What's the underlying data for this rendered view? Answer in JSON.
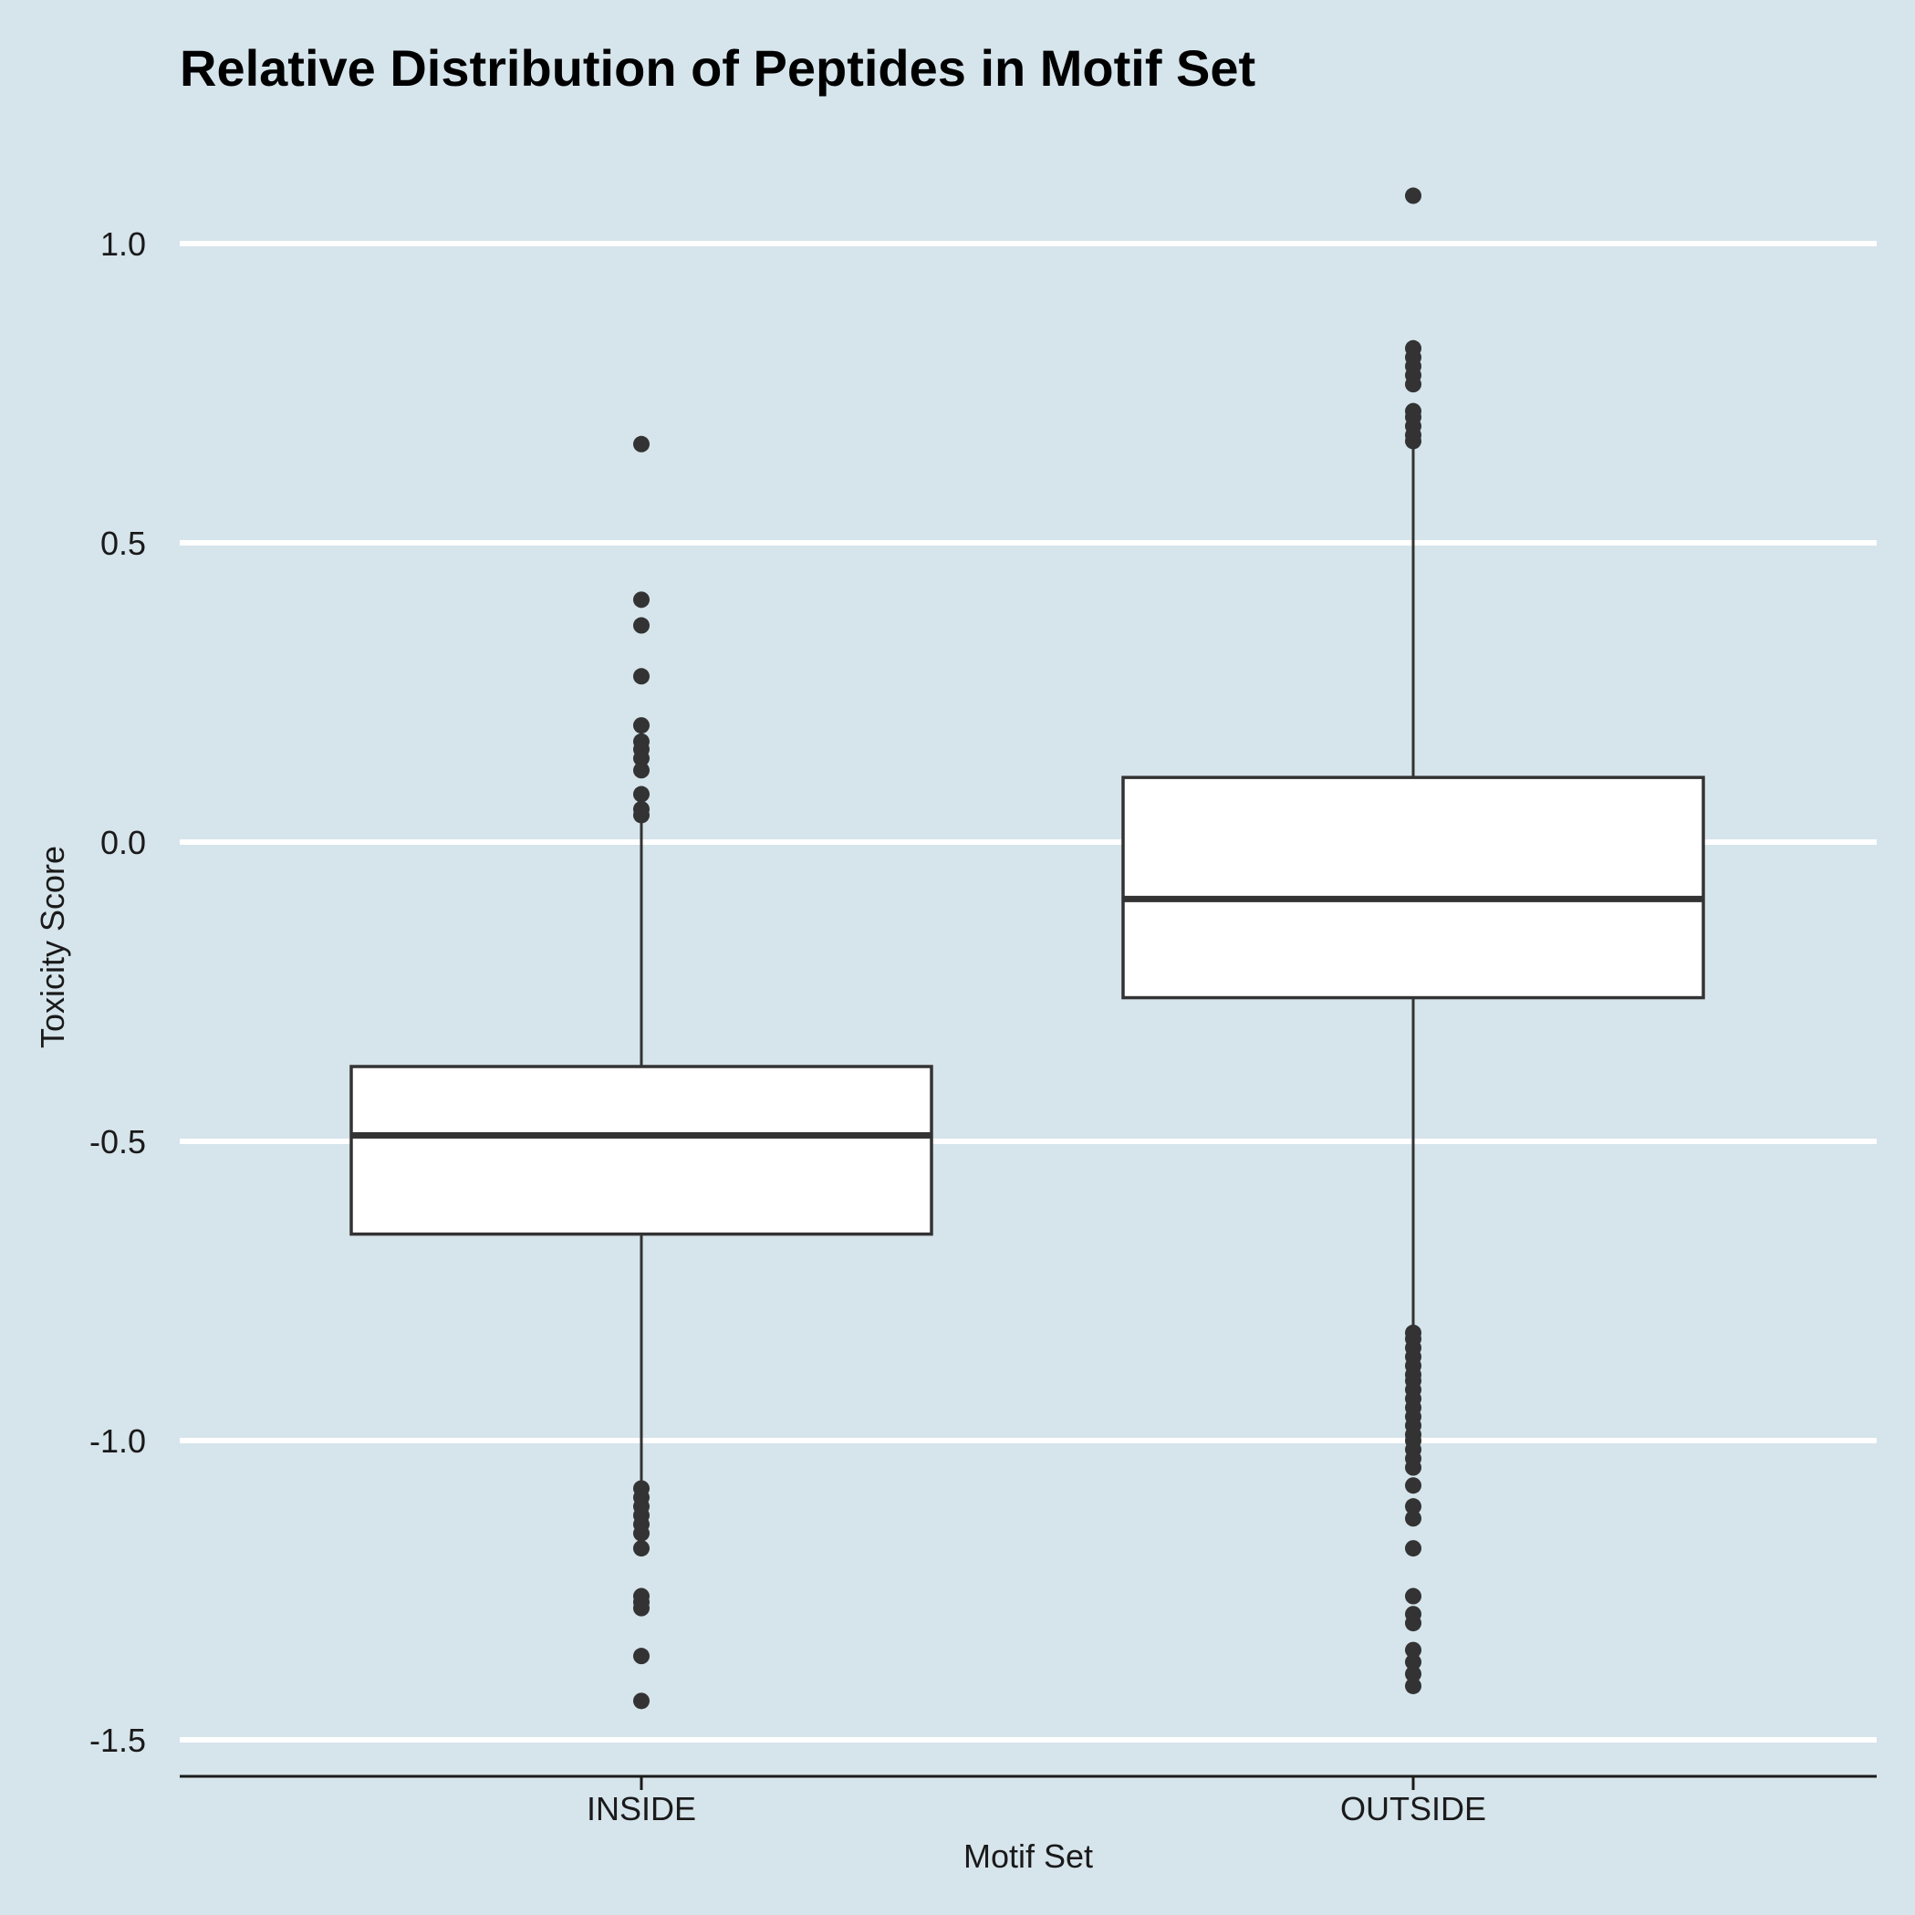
{
  "chart_data": {
    "type": "boxplot",
    "title": "Relative Distribution of Peptides in Motif Set",
    "xlabel": "Motif Set",
    "ylabel": "Toxicity Score",
    "ylim": [
      -1.56,
      1.15
    ],
    "yticks": [
      {
        "value": 1.0,
        "label": "1.0"
      },
      {
        "value": 0.5,
        "label": "0.5"
      },
      {
        "value": 0.0,
        "label": "0.0"
      },
      {
        "value": -0.5,
        "label": "-0.5"
      },
      {
        "value": -1.0,
        "label": "-1.0"
      },
      {
        "value": -1.5,
        "label": "-1.5"
      }
    ],
    "grid": "horizontal",
    "legend": "none",
    "categories": [
      "INSIDE",
      "OUTSIDE"
    ],
    "boxes": [
      {
        "category": "INSIDE",
        "whisker_low": -1.08,
        "q1": -0.655,
        "median": -0.49,
        "q3": -0.375,
        "whisker_high": 0.04,
        "outliers": [
          0.665,
          0.405,
          0.362,
          0.277,
          0.195,
          0.168,
          0.155,
          0.14,
          0.12,
          0.08,
          0.055,
          0.045,
          -1.08,
          -1.095,
          -1.11,
          -1.125,
          -1.14,
          -1.155,
          -1.18,
          -1.26,
          -1.27,
          -1.28,
          -1.36,
          -1.435
        ]
      },
      {
        "category": "OUTSIDE",
        "whisker_low": -0.82,
        "q1": -0.26,
        "median": -0.095,
        "q3": 0.108,
        "whisker_high": 0.66,
        "outliers": [
          1.08,
          0.825,
          0.81,
          0.795,
          0.78,
          0.765,
          0.72,
          0.71,
          0.695,
          0.68,
          0.67,
          -0.82,
          -0.83,
          -0.845,
          -0.86,
          -0.875,
          -0.89,
          -0.9,
          -0.915,
          -0.93,
          -0.945,
          -0.96,
          -0.975,
          -0.99,
          -1.0,
          -1.015,
          -1.03,
          -1.045,
          -1.075,
          -1.11,
          -1.13,
          -1.18,
          -1.26,
          -1.29,
          -1.305,
          -1.35,
          -1.37,
          -1.39,
          -1.41
        ]
      }
    ],
    "colors": {
      "background": "#d6e4eb",
      "box_fill": "#ffffff",
      "box_stroke": "#333333",
      "grid": "#ffffff",
      "point": "#333333"
    }
  }
}
